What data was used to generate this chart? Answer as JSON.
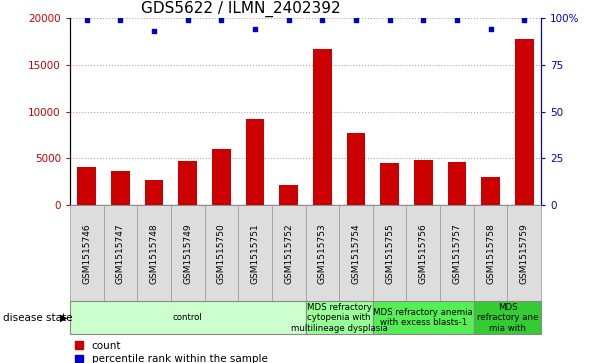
{
  "title": "GDS5622 / ILMN_2402392",
  "samples": [
    "GSM1515746",
    "GSM1515747",
    "GSM1515748",
    "GSM1515749",
    "GSM1515750",
    "GSM1515751",
    "GSM1515752",
    "GSM1515753",
    "GSM1515754",
    "GSM1515755",
    "GSM1515756",
    "GSM1515757",
    "GSM1515758",
    "GSM1515759"
  ],
  "counts": [
    4100,
    3700,
    2700,
    4700,
    6000,
    9200,
    2200,
    16700,
    7700,
    4500,
    4800,
    4600,
    3000,
    17800
  ],
  "percentiles": [
    99,
    99,
    93,
    99,
    99,
    94,
    99,
    99,
    99,
    99,
    99,
    99,
    94,
    99
  ],
  "bar_color": "#cc0000",
  "dot_color": "#0000cc",
  "ylim_left": [
    0,
    20000
  ],
  "ylim_right": [
    0,
    100
  ],
  "yticks_left": [
    0,
    5000,
    10000,
    15000,
    20000
  ],
  "ytick_labels_left": [
    "0",
    "5000",
    "10000",
    "15000",
    "20000"
  ],
  "yticks_right": [
    0,
    25,
    50,
    75,
    100
  ],
  "ytick_labels_right": [
    "0",
    "25",
    "50",
    "75",
    "100%"
  ],
  "grid_color": "#aaaaaa",
  "bg_color": "#ffffff",
  "bar_width": 0.55,
  "disease_groups": [
    {
      "label": "control",
      "start": 0,
      "end": 7,
      "color": "#ccffcc"
    },
    {
      "label": "MDS refractory\ncytopenia with\nmultilineage dysplasia",
      "start": 7,
      "end": 9,
      "color": "#99ff99"
    },
    {
      "label": "MDS refractory anemia\nwith excess blasts-1",
      "start": 9,
      "end": 12,
      "color": "#55ee55"
    },
    {
      "label": "MDS\nrefractory ane\nmia with",
      "start": 12,
      "end": 14,
      "color": "#33cc33"
    }
  ],
  "disease_state_label": "disease state",
  "legend_count_label": "count",
  "legend_percentile_label": "percentile rank within the sample",
  "tick_label_color_left": "#cc0000",
  "tick_label_color_right": "#0000cc",
  "xtick_bg_color": "#dddddd",
  "xtick_border_color": "#999999",
  "title_fontsize": 11
}
